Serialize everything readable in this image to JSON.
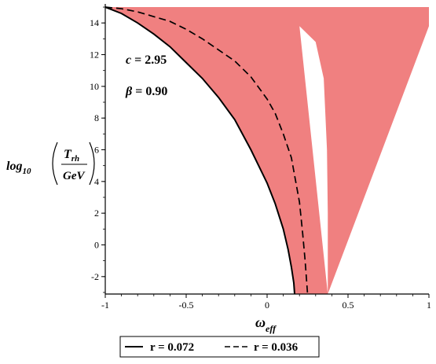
{
  "chart_data": {
    "type": "area",
    "xlabel_main": "ω",
    "xlabel_sub": "eff",
    "ylabel": {
      "prefix": "log",
      "prefix_sub": "10",
      "numerator": "T",
      "numerator_sub": "rh",
      "denominator": "GeV"
    },
    "xlim": [
      -1,
      1
    ],
    "ylim": [
      -3.1,
      15.2
    ],
    "x_ticks": [
      "-1",
      "-0.5",
      "0",
      "0.5",
      "1"
    ],
    "y_ticks": [
      "-2",
      "0",
      "2",
      "4",
      "6",
      "8",
      "10",
      "12",
      "14"
    ],
    "annotations": [
      {
        "label": "c",
        "value": "2.95"
      },
      {
        "label": "β",
        "value": "0.90"
      }
    ],
    "fill_color": "#f08080",
    "shaded_region": {
      "upper": [
        [
          -1,
          15
        ],
        [
          1,
          15
        ]
      ],
      "lower": [
        [
          -1,
          15
        ],
        [
          -0.9,
          14.99
        ],
        [
          -0.6,
          14.95
        ],
        [
          -0.4,
          14.9
        ],
        [
          -0.3,
          14.85
        ],
        [
          -0.2,
          14.7
        ],
        [
          -0.1,
          14.5
        ],
        [
          0.0,
          14.3
        ],
        [
          0.1,
          14.1
        ],
        [
          0.2,
          13.8
        ],
        [
          0.3,
          12.8
        ],
        [
          0.35,
          10.5
        ],
        [
          0.37,
          6.0
        ],
        [
          0.375,
          2.0
        ],
        [
          0.375,
          -3.1
        ]
      ],
      "left_boundary": "r = 0.072"
    },
    "series": [
      {
        "name": "r = 0.072",
        "style": "solid",
        "points": [
          [
            -1,
            15
          ],
          [
            -0.9,
            14.6
          ],
          [
            -0.8,
            14.0
          ],
          [
            -0.7,
            13.3
          ],
          [
            -0.6,
            12.5
          ],
          [
            -0.5,
            11.5
          ],
          [
            -0.4,
            10.5
          ],
          [
            -0.3,
            9.3
          ],
          [
            -0.2,
            7.9
          ],
          [
            -0.1,
            6.0
          ],
          [
            0.0,
            3.9
          ],
          [
            0.05,
            2.6
          ],
          [
            0.1,
            1.0
          ],
          [
            0.13,
            -0.3
          ],
          [
            0.15,
            -1.4
          ],
          [
            0.165,
            -2.4
          ],
          [
            0.17,
            -3.1
          ]
        ]
      },
      {
        "name": "r = 0.036",
        "style": "dashed",
        "points": [
          [
            -1,
            15
          ],
          [
            -0.9,
            14.9
          ],
          [
            -0.8,
            14.7
          ],
          [
            -0.7,
            14.4
          ],
          [
            -0.6,
            14.1
          ],
          [
            -0.5,
            13.6
          ],
          [
            -0.4,
            13.0
          ],
          [
            -0.3,
            12.3
          ],
          [
            -0.2,
            11.6
          ],
          [
            -0.1,
            10.6
          ],
          [
            0.0,
            9.2
          ],
          [
            0.05,
            8.3
          ],
          [
            0.1,
            7.0
          ],
          [
            0.15,
            5.5
          ],
          [
            0.2,
            2.7
          ],
          [
            0.22,
            0.7
          ],
          [
            0.235,
            -1.0
          ],
          [
            0.245,
            -2.4
          ],
          [
            0.25,
            -3.1
          ]
        ]
      }
    ]
  }
}
